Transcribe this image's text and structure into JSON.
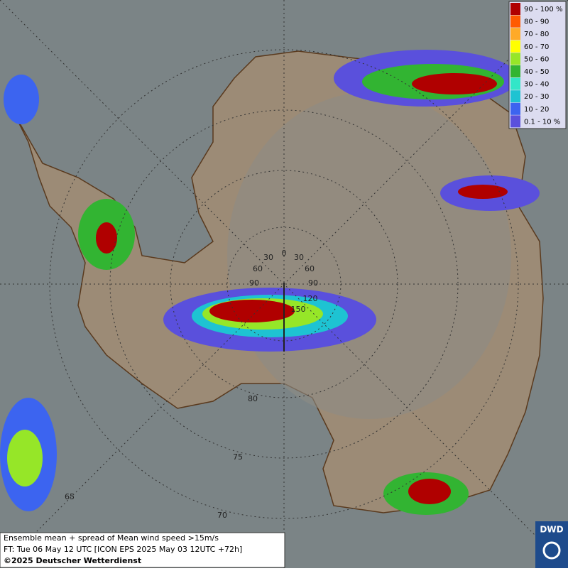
{
  "legend": {
    "items": [
      {
        "label": "90 - 100 %",
        "color": "#b00000"
      },
      {
        "label": "80 - 90",
        "color": "#ff5a00"
      },
      {
        "label": "70 - 80",
        "color": "#ffaa28"
      },
      {
        "label": "60 - 70",
        "color": "#ffff00"
      },
      {
        "label": "50 - 60",
        "color": "#96e628"
      },
      {
        "label": "40 - 50",
        "color": "#32b432"
      },
      {
        "label": "30 - 40",
        "color": "#32e6c8"
      },
      {
        "label": "20 - 30",
        "color": "#1ec3d2"
      },
      {
        "label": "10 - 20",
        "color": "#3c64f0"
      },
      {
        "label": "0.1 - 10 %",
        "color": "#5a50dc"
      }
    ]
  },
  "grid_labels": [
    "0",
    "30",
    "30",
    "60",
    "60",
    "90",
    "90",
    "120",
    "150",
    "80",
    "75",
    "70",
    "65"
  ],
  "info": {
    "line1": "Ensemble mean + spread of Mean wind speed >15m/s",
    "line2": "FT: Tue 06 May 12 UTC [ICON EPS 2025 May 03 12UTC +72h]",
    "line3": "©2025 Deutscher Wetterdienst"
  },
  "logo": {
    "text": "DWD"
  }
}
